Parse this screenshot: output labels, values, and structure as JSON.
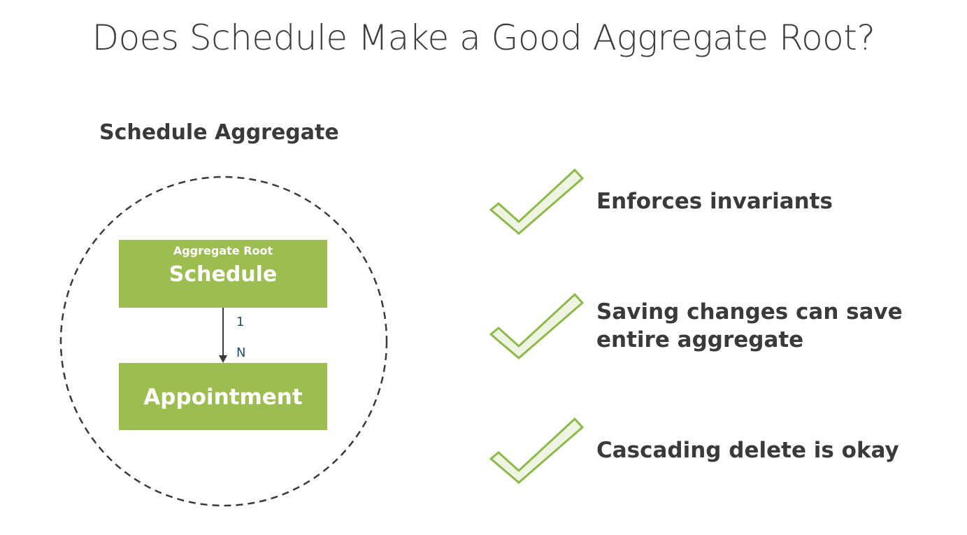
{
  "slide": {
    "title": "Does Schedule Make a Good Aggregate Root?"
  },
  "diagram": {
    "aggregate_label": "Schedule Aggregate",
    "root_box": {
      "caption": "Aggregate Root",
      "name": "Schedule"
    },
    "child_box": {
      "name": "Appointment"
    },
    "relationship": {
      "source_multiplicity": "1",
      "target_multiplicity": "N"
    },
    "colors": {
      "box_fill": "#9cbd4f",
      "circle_stroke": "#3a3a3a",
      "check_stroke": "#8cba49",
      "check_fill": "#eef3e2"
    }
  },
  "checklist": {
    "items": [
      {
        "icon": "checkmark-icon",
        "line1": "Enforces invariants",
        "line2": ""
      },
      {
        "icon": "checkmark-icon",
        "line1": "Saving changes can save",
        "line2": "entire aggregate"
      },
      {
        "icon": "checkmark-icon",
        "line1": "Cascading delete is okay",
        "line2": ""
      }
    ]
  }
}
